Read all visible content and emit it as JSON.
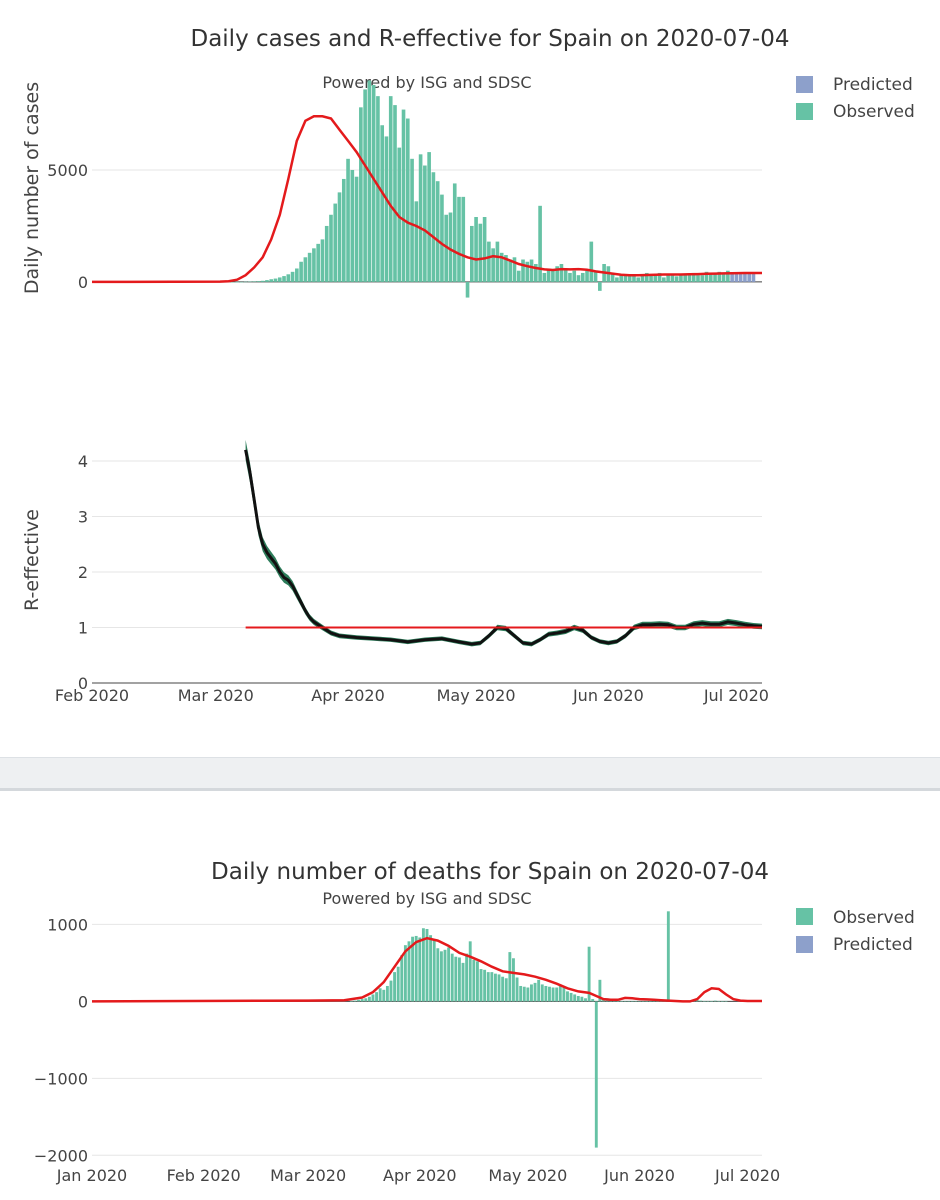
{
  "chart_data": [
    {
      "type": "bar+line",
      "title": "Daily cases and R-effective for Spain on 2020-07-04",
      "subtitle": "Powered by ISG and SDSC",
      "ylabel": "Daily number of cases",
      "yticks": [
        0,
        5000
      ],
      "ylim": [
        -1300,
        9200
      ],
      "xlim": [
        0,
        157
      ],
      "legend": [
        {
          "name": "Predicted",
          "color": "#8da0cb"
        },
        {
          "name": "Observed",
          "color": "#66c2a5"
        }
      ],
      "observed": {
        "start_day": 29,
        "values": [
          0,
          0,
          0,
          0,
          0,
          0,
          0,
          10,
          15,
          25,
          35,
          50,
          80,
          120,
          150,
          200,
          260,
          340,
          450,
          600,
          900,
          1100,
          1300,
          1500,
          1700,
          1900,
          2500,
          3000,
          3500,
          4000,
          4600,
          5500,
          5000,
          4700,
          7800,
          8600,
          9000,
          8800,
          8300,
          7000,
          6500,
          8300,
          7900,
          6000,
          7700,
          7300,
          5500,
          3600,
          5700,
          5200,
          5800,
          4900,
          4500,
          3900,
          3000,
          3100,
          4400,
          3800,
          3800,
          -700,
          2500,
          2900,
          2600,
          2900,
          1800,
          1500,
          1800,
          1300,
          1200,
          1000,
          1100,
          500,
          1000,
          900,
          1000,
          800,
          3400,
          400,
          600,
          500,
          700,
          800,
          600,
          400,
          500,
          300,
          400,
          500,
          1800,
          500,
          -400,
          800,
          700,
          400,
          200,
          300,
          300,
          300,
          300,
          200,
          300,
          400,
          300,
          300,
          400,
          200,
          300,
          350,
          250,
          300,
          350,
          300,
          400,
          300,
          300,
          450,
          350,
          400,
          450,
          400,
          500
        ]
      },
      "predicted": {
        "start_day": 150,
        "values": [
          400,
          400,
          400,
          400,
          400,
          400
        ]
      },
      "smoothed": {
        "points": [
          [
            0,
            0
          ],
          [
            30,
            15
          ],
          [
            32,
            30
          ],
          [
            34,
            100
          ],
          [
            36,
            300
          ],
          [
            38,
            650
          ],
          [
            40,
            1100
          ],
          [
            42,
            1900
          ],
          [
            44,
            3000
          ],
          [
            46,
            4600
          ],
          [
            48,
            6300
          ],
          [
            50,
            7200
          ],
          [
            52,
            7400
          ],
          [
            54,
            7400
          ],
          [
            56,
            7300
          ],
          [
            58,
            6800
          ],
          [
            60,
            6300
          ],
          [
            62,
            5800
          ],
          [
            64,
            5200
          ],
          [
            66,
            4600
          ],
          [
            68,
            4000
          ],
          [
            70,
            3400
          ],
          [
            72,
            2900
          ],
          [
            74,
            2650
          ],
          [
            76,
            2500
          ],
          [
            78,
            2300
          ],
          [
            80,
            2000
          ],
          [
            82,
            1700
          ],
          [
            84,
            1450
          ],
          [
            86,
            1250
          ],
          [
            88,
            1100
          ],
          [
            90,
            1000
          ],
          [
            92,
            1050
          ],
          [
            94,
            1150
          ],
          [
            96,
            1100
          ],
          [
            98,
            950
          ],
          [
            100,
            800
          ],
          [
            102,
            700
          ],
          [
            104,
            620
          ],
          [
            106,
            560
          ],
          [
            108,
            530
          ],
          [
            110,
            570
          ],
          [
            112,
            560
          ],
          [
            114,
            570
          ],
          [
            116,
            540
          ],
          [
            118,
            470
          ],
          [
            120,
            420
          ],
          [
            122,
            370
          ],
          [
            124,
            320
          ],
          [
            126,
            300
          ],
          [
            128,
            300
          ],
          [
            130,
            310
          ],
          [
            132,
            320
          ],
          [
            134,
            330
          ],
          [
            136,
            330
          ],
          [
            138,
            330
          ],
          [
            140,
            340
          ],
          [
            142,
            350
          ],
          [
            144,
            360
          ],
          [
            146,
            370
          ],
          [
            148,
            380
          ],
          [
            150,
            390
          ],
          [
            153,
            400
          ],
          [
            157,
            400
          ]
        ]
      }
    },
    {
      "type": "line",
      "ylabel": "R-effective",
      "yticks": [
        0,
        1,
        2,
        3,
        4
      ],
      "ylim": [
        0,
        4.45
      ],
      "xlim": [
        0,
        157
      ],
      "xticks": [
        {
          "day": 0,
          "label": "Feb 2020"
        },
        {
          "day": 29,
          "label": "Mar 2020"
        },
        {
          "day": 60,
          "label": "Apr 2020"
        },
        {
          "day": 90,
          "label": "May 2020"
        },
        {
          "day": 121,
          "label": "Jun 2020"
        },
        {
          "day": 151,
          "label": "Jul 2020"
        }
      ],
      "threshold": {
        "value": 1,
        "start_day": 36,
        "end_day": 157
      },
      "r_mean": [
        [
          36,
          4.2
        ],
        [
          37,
          3.8
        ],
        [
          38,
          3.3
        ],
        [
          39,
          2.8
        ],
        [
          40,
          2.5
        ],
        [
          41,
          2.35
        ],
        [
          42,
          2.25
        ],
        [
          43,
          2.15
        ],
        [
          44,
          2.0
        ],
        [
          45,
          1.9
        ],
        [
          46,
          1.85
        ],
        [
          47,
          1.75
        ],
        [
          48,
          1.6
        ],
        [
          49,
          1.45
        ],
        [
          50,
          1.3
        ],
        [
          51,
          1.18
        ],
        [
          52,
          1.1
        ],
        [
          54,
          1.0
        ],
        [
          56,
          0.9
        ],
        [
          58,
          0.85
        ],
        [
          62,
          0.82
        ],
        [
          66,
          0.8
        ],
        [
          70,
          0.78
        ],
        [
          74,
          0.74
        ],
        [
          78,
          0.78
        ],
        [
          82,
          0.8
        ],
        [
          86,
          0.74
        ],
        [
          89,
          0.7
        ],
        [
          91,
          0.72
        ],
        [
          93,
          0.85
        ],
        [
          95,
          1.0
        ],
        [
          97,
          0.98
        ],
        [
          99,
          0.85
        ],
        [
          101,
          0.72
        ],
        [
          103,
          0.7
        ],
        [
          105,
          0.78
        ],
        [
          107,
          0.88
        ],
        [
          109,
          0.9
        ],
        [
          111,
          0.93
        ],
        [
          113,
          1.0
        ],
        [
          115,
          0.95
        ],
        [
          117,
          0.82
        ],
        [
          119,
          0.75
        ],
        [
          121,
          0.72
        ],
        [
          123,
          0.75
        ],
        [
          125,
          0.85
        ],
        [
          127,
          1.0
        ],
        [
          129,
          1.05
        ],
        [
          131,
          1.05
        ],
        [
          133,
          1.06
        ],
        [
          135,
          1.05
        ],
        [
          137,
          1.0
        ],
        [
          139,
          1.0
        ],
        [
          141,
          1.06
        ],
        [
          143,
          1.08
        ],
        [
          145,
          1.06
        ],
        [
          147,
          1.06
        ],
        [
          149,
          1.1
        ],
        [
          151,
          1.08
        ],
        [
          153,
          1.05
        ],
        [
          155,
          1.03
        ],
        [
          157,
          1.02
        ]
      ],
      "band_halfwidth": 0.1,
      "band_color": "#2e7d5b"
    },
    {
      "type": "bar+line",
      "title": "Daily number of deaths for Spain on 2020-07-04",
      "subtitle": "Powered by ISG and SDSC",
      "yticks": [
        1000,
        0,
        -1000,
        -2000
      ],
      "ylim": [
        -2100,
        1200
      ],
      "xlim": [
        0,
        186
      ],
      "xticks": [
        {
          "day": 0,
          "label": "Jan 2020"
        },
        {
          "day": 31,
          "label": "Feb 2020"
        },
        {
          "day": 60,
          "label": "Mar 2020"
        },
        {
          "day": 91,
          "label": "Apr 2020"
        },
        {
          "day": 121,
          "label": "May 2020"
        },
        {
          "day": 152,
          "label": "Jun 2020"
        },
        {
          "day": 182,
          "label": "Jul 2020"
        }
      ],
      "legend": [
        {
          "name": "Observed",
          "color": "#66c2a5"
        },
        {
          "name": "Predicted",
          "color": "#8da0cb"
        }
      ],
      "observed": {
        "start_day": 72,
        "values": [
          5,
          10,
          20,
          30,
          40,
          60,
          90,
          120,
          170,
          150,
          200,
          270,
          380,
          450,
          600,
          730,
          780,
          840,
          850,
          830,
          950,
          940,
          860,
          810,
          690,
          650,
          670,
          700,
          620,
          580,
          570,
          500,
          620,
          780,
          540,
          520,
          420,
          410,
          380,
          380,
          360,
          350,
          320,
          300,
          640,
          560,
          310,
          200,
          190,
          180,
          220,
          240,
          280,
          220,
          200,
          190,
          180,
          180,
          220,
          200,
          130,
          110,
          90,
          70,
          60,
          40,
          710,
          30,
          -1900,
          280,
          20,
          40,
          20,
          10,
          5,
          5,
          2,
          2,
          2,
          2,
          1,
          2,
          2,
          2,
          1,
          1,
          2,
          2,
          1170,
          5,
          10,
          10,
          5,
          5,
          10,
          10,
          20,
          10,
          5,
          5,
          5,
          10,
          5,
          5,
          5
        ]
      },
      "smoothed": {
        "points": [
          [
            0,
            0
          ],
          [
            60,
            10
          ],
          [
            70,
            15
          ],
          [
            75,
            50
          ],
          [
            78,
            120
          ],
          [
            81,
            250
          ],
          [
            84,
            450
          ],
          [
            87,
            650
          ],
          [
            90,
            770
          ],
          [
            93,
            820
          ],
          [
            96,
            790
          ],
          [
            99,
            720
          ],
          [
            102,
            630
          ],
          [
            105,
            580
          ],
          [
            108,
            520
          ],
          [
            111,
            450
          ],
          [
            114,
            390
          ],
          [
            117,
            370
          ],
          [
            120,
            350
          ],
          [
            123,
            320
          ],
          [
            126,
            280
          ],
          [
            129,
            230
          ],
          [
            132,
            170
          ],
          [
            135,
            130
          ],
          [
            138,
            110
          ],
          [
            140,
            70
          ],
          [
            142,
            30
          ],
          [
            144,
            20
          ],
          [
            146,
            20
          ],
          [
            148,
            45
          ],
          [
            150,
            40
          ],
          [
            152,
            30
          ],
          [
            154,
            25
          ],
          [
            156,
            20
          ],
          [
            158,
            15
          ],
          [
            160,
            10
          ],
          [
            162,
            5
          ],
          [
            164,
            0
          ],
          [
            166,
            0
          ],
          [
            168,
            30
          ],
          [
            170,
            120
          ],
          [
            172,
            170
          ],
          [
            174,
            160
          ],
          [
            176,
            90
          ],
          [
            178,
            30
          ],
          [
            180,
            10
          ],
          [
            182,
            5
          ],
          [
            186,
            5
          ]
        ]
      }
    }
  ]
}
